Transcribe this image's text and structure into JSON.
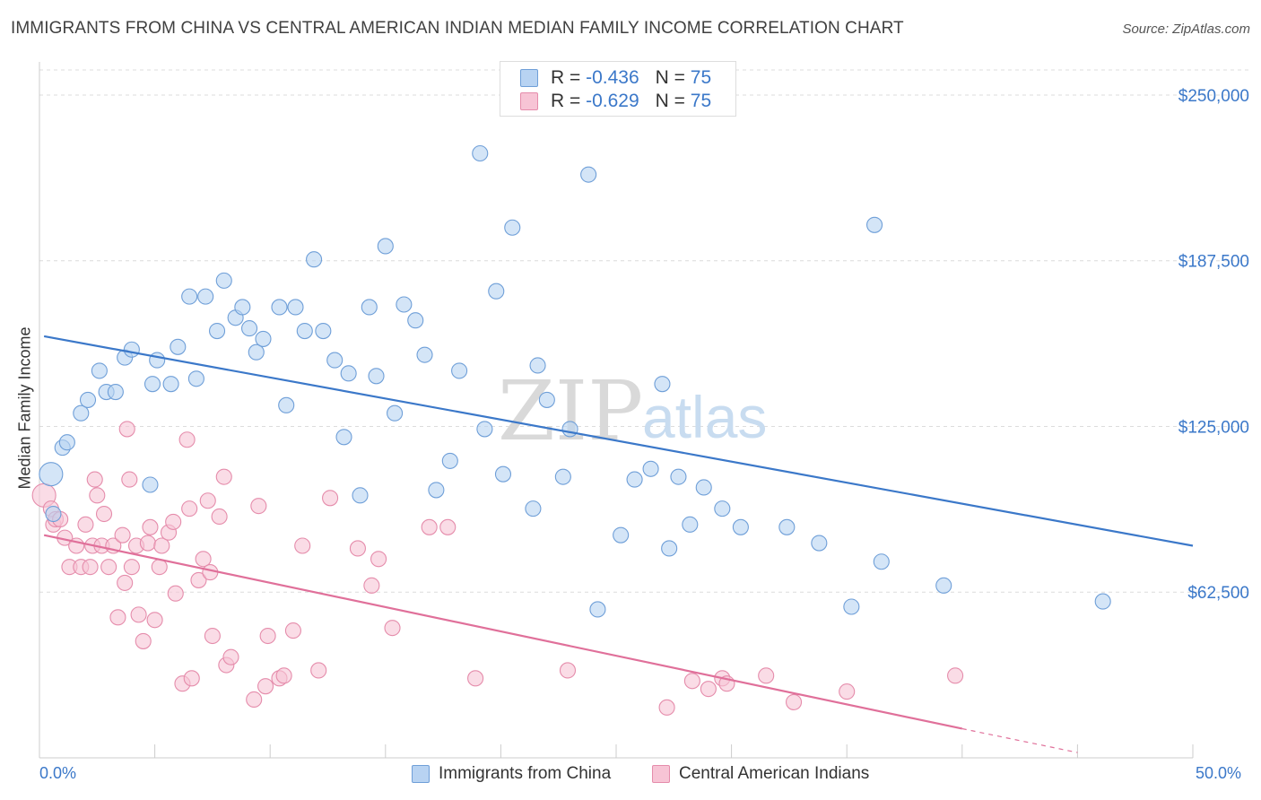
{
  "title": "IMMIGRANTS FROM CHINA VS CENTRAL AMERICAN INDIAN MEDIAN FAMILY INCOME CORRELATION CHART",
  "source": "Source: ZipAtlas.com",
  "watermark": {
    "zip": "ZIP",
    "atlas": "atlas"
  },
  "colors": {
    "blue": "#3b78c9",
    "blue_fill": "#b8d3f2",
    "blue_stroke": "#6f9fd8",
    "pink": "#e0709a",
    "pink_fill": "#f7c4d5",
    "pink_stroke": "#e58cab"
  },
  "legend": {
    "r_label": "R =",
    "n_label": "N =",
    "rows": [
      {
        "r": "-0.436",
        "n": "75",
        "color": "blue"
      },
      {
        "r": "-0.629",
        "n": "75",
        "color": "pink"
      }
    ],
    "bottom": [
      {
        "label": "Immigrants from China",
        "color": "blue"
      },
      {
        "label": "Central American Indians",
        "color": "pink"
      }
    ]
  },
  "chart_data": {
    "type": "scatter",
    "title": "IMMIGRANTS FROM CHINA VS CENTRAL AMERICAN INDIAN MEDIAN FAMILY INCOME CORRELATION CHART",
    "xlabel": "",
    "ylabel": "Median Family Income",
    "xlim": [
      0,
      50
    ],
    "ylim": [
      0,
      262500
    ],
    "x_tick_labels": [
      "0.0%",
      "50.0%"
    ],
    "y_ticks": [
      62500,
      125000,
      187500,
      250000
    ],
    "y_tick_labels": [
      "$62,500",
      "$125,000",
      "$187,500",
      "$250,000"
    ],
    "grid": "horizontal dashed",
    "legend_position": "top-center",
    "series": [
      {
        "name": "Immigrants from China",
        "color": "blue",
        "trend": {
          "x": [
            0.2,
            50
          ],
          "y": [
            159000,
            80000
          ]
        },
        "points": [
          [
            0.5,
            107000
          ],
          [
            0.6,
            92000
          ],
          [
            1.0,
            117000
          ],
          [
            1.2,
            119000
          ],
          [
            1.8,
            130000
          ],
          [
            2.1,
            135000
          ],
          [
            2.6,
            146000
          ],
          [
            2.9,
            138000
          ],
          [
            3.3,
            138000
          ],
          [
            3.7,
            151000
          ],
          [
            4.0,
            154000
          ],
          [
            4.8,
            103000
          ],
          [
            4.9,
            141000
          ],
          [
            5.1,
            150000
          ],
          [
            5.7,
            141000
          ],
          [
            6.0,
            155000
          ],
          [
            6.5,
            174000
          ],
          [
            6.8,
            143000
          ],
          [
            7.2,
            174000
          ],
          [
            7.7,
            161000
          ],
          [
            8.0,
            180000
          ],
          [
            8.5,
            166000
          ],
          [
            8.8,
            170000
          ],
          [
            9.1,
            162000
          ],
          [
            9.4,
            153000
          ],
          [
            9.7,
            158000
          ],
          [
            10.4,
            170000
          ],
          [
            10.7,
            133000
          ],
          [
            11.1,
            170000
          ],
          [
            11.5,
            161000
          ],
          [
            11.9,
            188000
          ],
          [
            12.3,
            161000
          ],
          [
            12.8,
            150000
          ],
          [
            13.2,
            121000
          ],
          [
            13.4,
            145000
          ],
          [
            13.9,
            99000
          ],
          [
            14.3,
            170000
          ],
          [
            14.6,
            144000
          ],
          [
            15.0,
            193000
          ],
          [
            15.4,
            130000
          ],
          [
            15.8,
            171000
          ],
          [
            16.3,
            165000
          ],
          [
            16.7,
            152000
          ],
          [
            17.2,
            101000
          ],
          [
            17.8,
            112000
          ],
          [
            18.2,
            146000
          ],
          [
            19.1,
            228000
          ],
          [
            19.3,
            124000
          ],
          [
            19.8,
            176000
          ],
          [
            20.1,
            107000
          ],
          [
            20.5,
            200000
          ],
          [
            21.4,
            94000
          ],
          [
            21.6,
            148000
          ],
          [
            22.0,
            135000
          ],
          [
            22.7,
            106000
          ],
          [
            23.0,
            124000
          ],
          [
            23.8,
            220000
          ],
          [
            24.2,
            56000
          ],
          [
            25.2,
            84000
          ],
          [
            25.8,
            105000
          ],
          [
            26.5,
            109000
          ],
          [
            27.0,
            141000
          ],
          [
            27.3,
            79000
          ],
          [
            27.7,
            106000
          ],
          [
            28.2,
            88000
          ],
          [
            28.8,
            102000
          ],
          [
            29.6,
            94000
          ],
          [
            30.4,
            87000
          ],
          [
            32.4,
            87000
          ],
          [
            33.8,
            81000
          ],
          [
            35.2,
            57000
          ],
          [
            36.2,
            201000
          ],
          [
            36.5,
            74000
          ],
          [
            39.2,
            65000
          ],
          [
            46.1,
            59000
          ]
        ]
      },
      {
        "name": "Central American Indians",
        "color": "pink",
        "trend": {
          "x": [
            0.2,
            40
          ],
          "y": [
            84000,
            11000
          ]
        },
        "trend_ext": {
          "x": [
            40,
            45
          ],
          "y": [
            11000,
            2000
          ]
        },
        "points": [
          [
            0.2,
            99000
          ],
          [
            0.5,
            94000
          ],
          [
            0.6,
            88000
          ],
          [
            0.7,
            90000
          ],
          [
            0.9,
            90000
          ],
          [
            1.1,
            83000
          ],
          [
            1.3,
            72000
          ],
          [
            1.6,
            80000
          ],
          [
            1.8,
            72000
          ],
          [
            2.0,
            88000
          ],
          [
            2.2,
            72000
          ],
          [
            2.3,
            80000
          ],
          [
            2.4,
            105000
          ],
          [
            2.5,
            99000
          ],
          [
            2.7,
            80000
          ],
          [
            2.8,
            92000
          ],
          [
            3.0,
            72000
          ],
          [
            3.2,
            80000
          ],
          [
            3.4,
            53000
          ],
          [
            3.6,
            84000
          ],
          [
            3.7,
            66000
          ],
          [
            3.8,
            124000
          ],
          [
            3.9,
            105000
          ],
          [
            4.0,
            72000
          ],
          [
            4.2,
            80000
          ],
          [
            4.3,
            54000
          ],
          [
            4.5,
            44000
          ],
          [
            4.7,
            81000
          ],
          [
            4.8,
            87000
          ],
          [
            5.0,
            52000
          ],
          [
            5.2,
            72000
          ],
          [
            5.3,
            80000
          ],
          [
            5.6,
            85000
          ],
          [
            5.8,
            89000
          ],
          [
            5.9,
            62000
          ],
          [
            6.2,
            28000
          ],
          [
            6.4,
            120000
          ],
          [
            6.5,
            94000
          ],
          [
            6.6,
            30000
          ],
          [
            6.9,
            67000
          ],
          [
            7.1,
            75000
          ],
          [
            7.3,
            97000
          ],
          [
            7.4,
            70000
          ],
          [
            7.5,
            46000
          ],
          [
            7.8,
            91000
          ],
          [
            8.0,
            106000
          ],
          [
            8.1,
            35000
          ],
          [
            8.3,
            38000
          ],
          [
            9.3,
            22000
          ],
          [
            9.5,
            95000
          ],
          [
            9.8,
            27000
          ],
          [
            9.9,
            46000
          ],
          [
            10.4,
            30000
          ],
          [
            10.6,
            31000
          ],
          [
            11.0,
            48000
          ],
          [
            11.4,
            80000
          ],
          [
            12.1,
            33000
          ],
          [
            12.6,
            98000
          ],
          [
            13.8,
            79000
          ],
          [
            14.4,
            65000
          ],
          [
            14.7,
            75000
          ],
          [
            15.3,
            49000
          ],
          [
            16.9,
            87000
          ],
          [
            17.7,
            87000
          ],
          [
            18.9,
            30000
          ],
          [
            22.9,
            33000
          ],
          [
            27.2,
            19000
          ],
          [
            28.3,
            29000
          ],
          [
            29.0,
            26000
          ],
          [
            29.6,
            30000
          ],
          [
            29.8,
            28000
          ],
          [
            31.5,
            31000
          ],
          [
            32.7,
            21000
          ],
          [
            35.0,
            25000
          ],
          [
            39.7,
            31000
          ]
        ]
      }
    ]
  }
}
